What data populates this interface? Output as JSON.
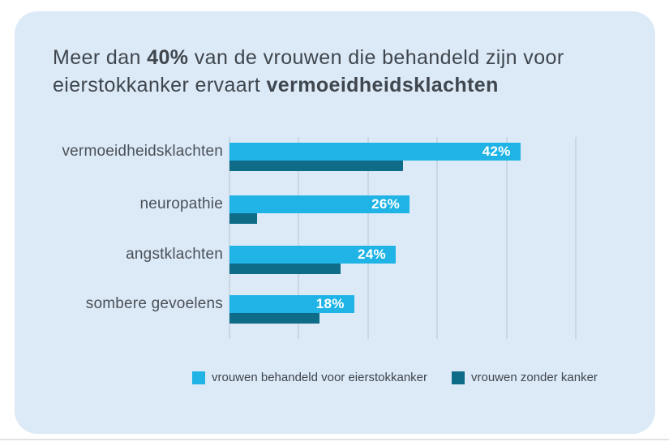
{
  "title": {
    "line1_pre": "Meer dan ",
    "line1_bold": "40%",
    "line1_post": " van de vrouwen die behandeld zijn voor",
    "line2_pre": "eierstokkanker ervaart ",
    "line2_bold": "vermoeidheidsklachten"
  },
  "chart_data": {
    "type": "bar",
    "orientation": "horizontal",
    "title": "Meer dan 40% van de vrouwen die behandeld zijn voor eierstokkanker ervaart vermoeidheidsklachten",
    "categories": [
      "vermoeidheidsklachten",
      "neuropathie",
      "angstklachten",
      "sombere gevoelens"
    ],
    "series": [
      {
        "name": "vrouwen behandeld voor eierstokkanker",
        "color": "#20B4E6",
        "values": [
          42,
          26,
          24,
          18
        ],
        "value_labels": [
          "42%",
          "26%",
          "24%",
          "18%"
        ]
      },
      {
        "name": "vrouwen zonder kanker",
        "color": "#0E6C88",
        "values": [
          25,
          4,
          16,
          13
        ],
        "value_labels": [
          "",
          "",
          "",
          ""
        ],
        "estimated": true
      }
    ],
    "xlim": [
      0,
      50
    ],
    "gridline_values": [
      0,
      10,
      20,
      30,
      40,
      50
    ],
    "grid": "vertical-only",
    "axis_tick_labels": "none",
    "legend_position": "bottom"
  },
  "colors": {
    "page_bg": "#FFFFFF",
    "card_bg": "#DCE9F7",
    "bar_light": "#20B4E6",
    "bar_dark": "#0E6C88",
    "gridline": "#C9D7E5",
    "title_text": "#3F464D",
    "label_text": "#4A5158",
    "value_label_text": "#FFFFFF"
  }
}
